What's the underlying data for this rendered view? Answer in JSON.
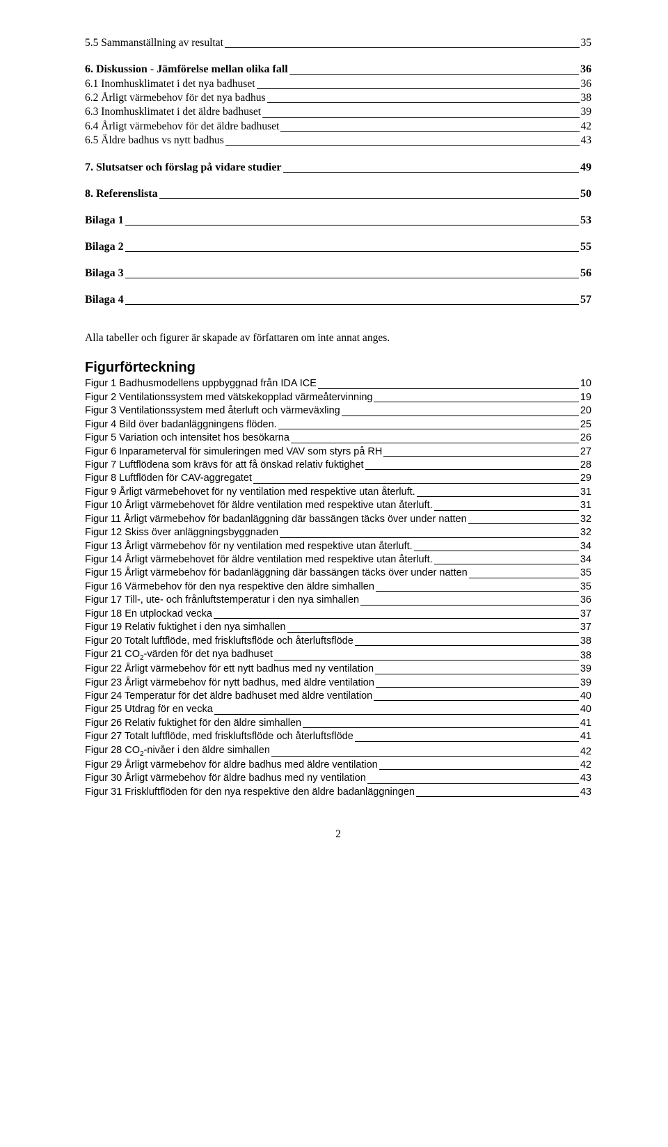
{
  "toc_top": [
    {
      "label": "5.5 Sammanställning av resultat",
      "page": "35",
      "style": "plain"
    },
    {
      "label": "6. Diskussion - Jämförelse mellan olika fall",
      "page": "36",
      "style": "section-head"
    },
    {
      "label": "6.1 Inomhusklimatet i det nya badhuset",
      "page": "36",
      "style": "plain"
    },
    {
      "label": "6.2 Årligt värmebehov för det nya badhus",
      "page": "38",
      "style": "plain"
    },
    {
      "label": "6.3 Inomhusklimatet i det äldre badhuset",
      "page": "39",
      "style": "plain"
    },
    {
      "label": "6.4 Årligt värmebehov för det äldre badhuset",
      "page": "42",
      "style": "plain"
    },
    {
      "label": "6.5 Äldre badhus vs nytt badhus",
      "page": "43",
      "style": "plain"
    },
    {
      "label": "7. Slutsatser och förslag på vidare studier",
      "page": "49",
      "style": "section-head"
    },
    {
      "label": "8. Referenslista",
      "page": "50",
      "style": "section-head"
    },
    {
      "label": "Bilaga 1",
      "page": "53",
      "style": "bilaga"
    },
    {
      "label": "Bilaga 2",
      "page": "55",
      "style": "bilaga"
    },
    {
      "label": "Bilaga 3",
      "page": "56",
      "style": "bilaga"
    },
    {
      "label": "Bilaga 4",
      "page": "57",
      "style": "bilaga"
    }
  ],
  "note": "Alla tabeller och figurer är skapade av författaren om inte annat anges.",
  "fig_heading": "Figurförteckning",
  "figures_prefix": "Figur ",
  "figures": [
    {
      "n": "1",
      "label": "Badhusmodellens uppbyggnad från IDA ICE",
      "page": "10"
    },
    {
      "n": "2",
      "label": "Ventilationssystem med vätskekopplad värmeåtervinning",
      "page": "19"
    },
    {
      "n": "3",
      "label": "Ventilationssystem med återluft och värmeväxling",
      "page": "20"
    },
    {
      "n": "4",
      "label": "Bild över badanläggningens flöden.",
      "page": "25"
    },
    {
      "n": "5",
      "label": "Variation och intensitet hos besökarna",
      "page": "26"
    },
    {
      "n": "6",
      "label": "Inparameterval för simuleringen med VAV som styrs på RH",
      "page": "27"
    },
    {
      "n": "7",
      "label": "Luftflödena som krävs för att få önskad relativ fuktighet",
      "page": "28"
    },
    {
      "n": "8",
      "label": "Luftflöden för CAV-aggregatet",
      "page": "29"
    },
    {
      "n": "9",
      "label": "Årligt värmebehovet för ny ventilation med respektive utan återluft.",
      "page": "31"
    },
    {
      "n": "10",
      "label": "Årligt värmebehovet för äldre ventilation med respektive utan återluft.",
      "page": "31"
    },
    {
      "n": "11",
      "label": "Årligt värmebehov för badanläggning där bassängen täcks över under natten",
      "page": "32"
    },
    {
      "n": "12",
      "label": "Skiss över anläggningsbyggnaden",
      "page": "32"
    },
    {
      "n": "13",
      "label": "Årligt värmebehov för ny ventilation med respektive utan återluft.",
      "page": "34"
    },
    {
      "n": "14",
      "label": "Årligt värmebehovet för äldre ventilation med respektive utan återluft.",
      "page": "34"
    },
    {
      "n": "15",
      "label": "Årligt värmebehov för badanläggning där bassängen täcks över under natten",
      "page": "35"
    },
    {
      "n": "16",
      "label": "Värmebehov för den nya respektive den äldre simhallen",
      "page": "35"
    },
    {
      "n": "17",
      "label": "Till-, ute- och frånluftstemperatur i den nya simhallen",
      "page": "36"
    },
    {
      "n": "18",
      "label": "En utplockad vecka",
      "page": "37"
    },
    {
      "n": "19",
      "label": "Relativ fuktighet i den nya simhallen",
      "page": "37"
    },
    {
      "n": "20",
      "label": "Totalt luftflöde, med friskluftsflöde och återluftsflöde",
      "page": "38"
    },
    {
      "n": "21",
      "label": "CO<sub>2</sub>-värden för det nya badhuset",
      "page": "38"
    },
    {
      "n": "22",
      "label": "Årligt värmebehov för ett nytt badhus med ny ventilation",
      "page": "39"
    },
    {
      "n": "23",
      "label": "Årligt värmebehov för nytt badhus, med äldre ventilation",
      "page": "39"
    },
    {
      "n": "24",
      "label": "Temperatur för det äldre badhuset med äldre ventilation",
      "page": "40"
    },
    {
      "n": "25",
      "label": "Utdrag för en vecka",
      "page": "40"
    },
    {
      "n": "26",
      "label": "Relativ fuktighet för den äldre simhallen",
      "page": "41"
    },
    {
      "n": "27",
      "label": "Totalt luftflöde, med friskluftsflöde och återluftsflöde",
      "page": "41"
    },
    {
      "n": "28",
      "label": "CO<sub>2</sub>-nivåer i den äldre simhallen",
      "page": "42"
    },
    {
      "n": "29",
      "label": "Årligt värmebehov för äldre badhus med äldre ventilation",
      "page": "42"
    },
    {
      "n": "30",
      "label": "Årligt värmebehov för äldre badhus med ny ventilation",
      "page": "43"
    },
    {
      "n": "31",
      "label": "Friskluftflöden för den nya respektive den äldre badanläggningen",
      "page": "43"
    }
  ],
  "page_number": "2"
}
